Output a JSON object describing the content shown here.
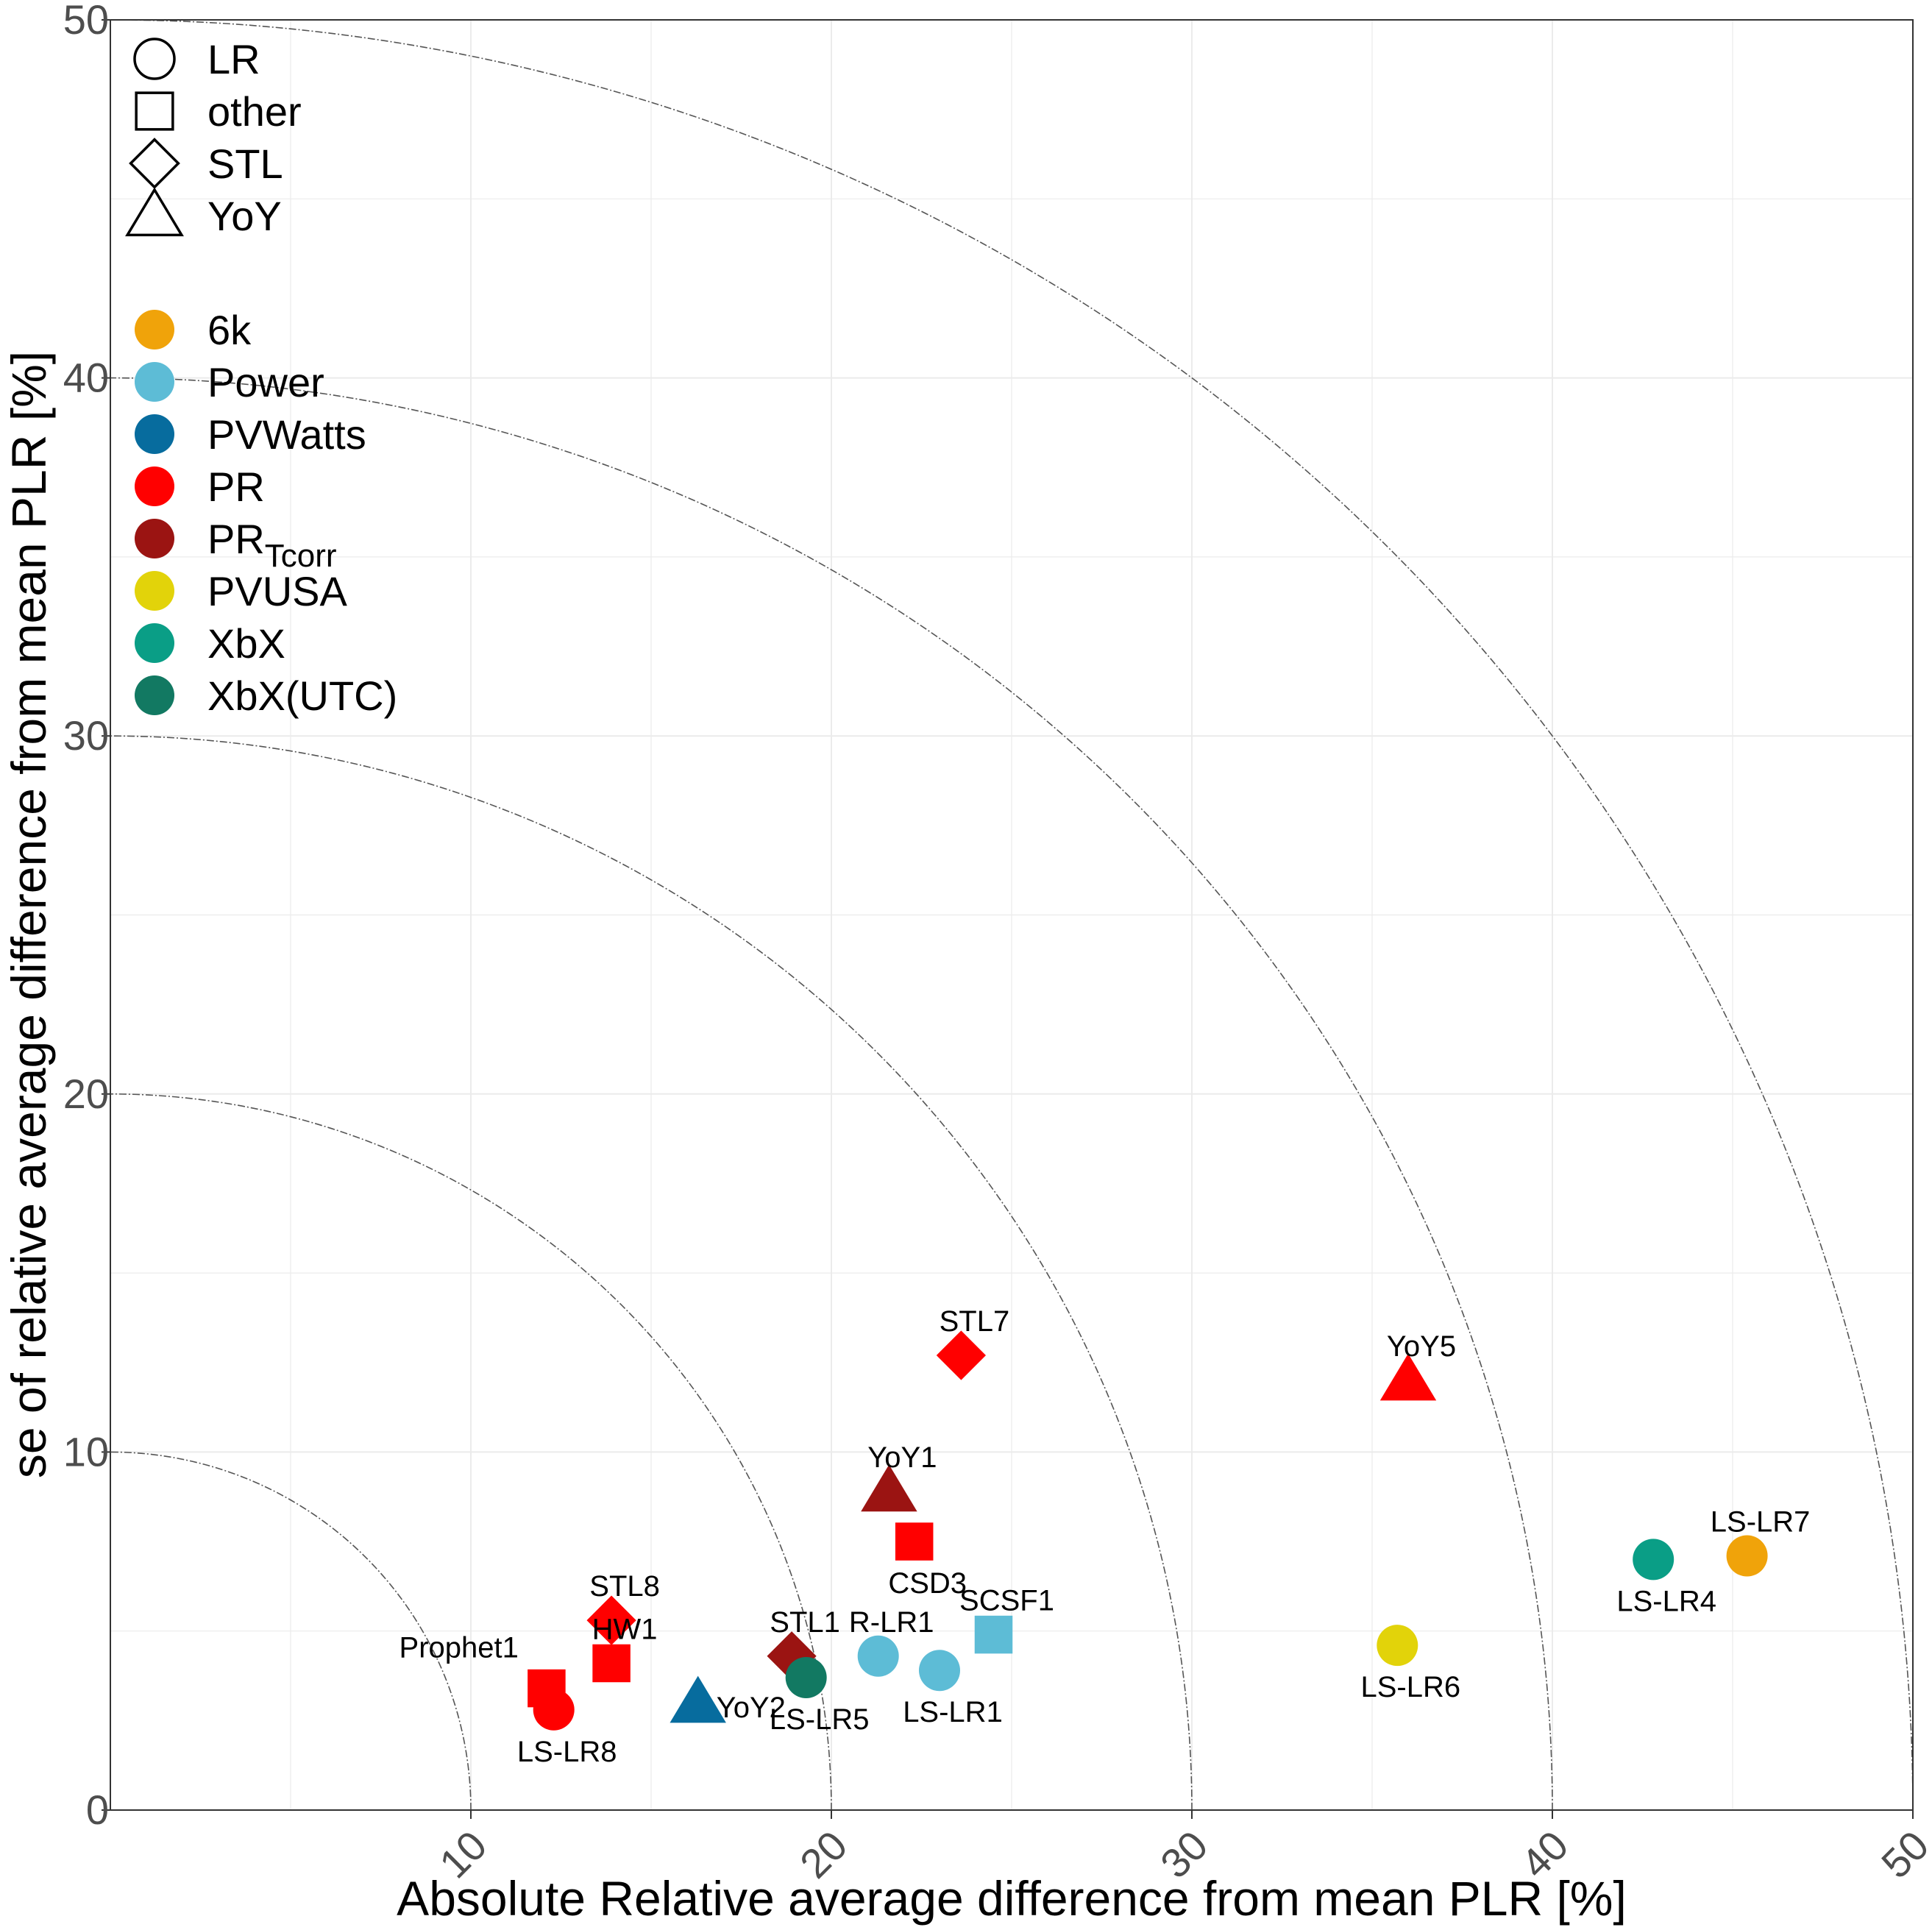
{
  "chart_data": {
    "type": "scatter",
    "xlabel": "Absolute Relative average difference from mean PLR [%]",
    "ylabel": "se of relative average difference from mean PLR [%]",
    "xlim": [
      0,
      50
    ],
    "ylim": [
      0,
      50
    ],
    "x_ticks": [
      "10",
      "20",
      "30",
      "40",
      "50"
    ],
    "y_ticks": [
      "0",
      "10",
      "20",
      "30",
      "40",
      "50"
    ],
    "grid": true,
    "reference_arcs": [
      10,
      20,
      30,
      40,
      50
    ],
    "legend": {
      "placement": "top-left",
      "shapes": [
        {
          "label": "LR",
          "shape": "circle"
        },
        {
          "label": "other",
          "shape": "square"
        },
        {
          "label": "STL",
          "shape": "diamond"
        },
        {
          "label": "YoY",
          "shape": "triangle"
        }
      ],
      "colors": [
        {
          "label": "6k",
          "color": "#F0A30A"
        },
        {
          "label": "Power",
          "color": "#5DBCD6"
        },
        {
          "label": "PVWatts",
          "color": "#076C9E"
        },
        {
          "label": "PR",
          "color": "#FF0000"
        },
        {
          "label": "PR",
          "sub": "Tcorr",
          "color": "#9B1412"
        },
        {
          "label": "PVUSA",
          "color": "#E2D30A"
        },
        {
          "label": "XbX",
          "color": "#0A9E86"
        },
        {
          "label": "XbX(UTC)",
          "color": "#127962"
        }
      ]
    },
    "points": [
      {
        "label": "LS-LR7",
        "x": 45.4,
        "y": 7.1,
        "shape": "circle",
        "color": "#F0A30A",
        "label_pos": "above"
      },
      {
        "label": "LS-LR4",
        "x": 42.8,
        "y": 7.0,
        "shape": "circle",
        "color": "#0A9E86",
        "label_pos": "below"
      },
      {
        "label": "LS-LR6",
        "x": 35.7,
        "y": 4.6,
        "shape": "circle",
        "color": "#E2D30A",
        "label_pos": "below"
      },
      {
        "label": "YoY5",
        "x": 36.0,
        "y": 12.0,
        "shape": "triangle",
        "color": "#FF0000",
        "label_pos": "above"
      },
      {
        "label": "STL7",
        "x": 23.6,
        "y": 12.7,
        "shape": "diamond",
        "color": "#FF0000",
        "label_pos": "above"
      },
      {
        "label": "YoY1",
        "x": 21.6,
        "y": 8.9,
        "shape": "triangle",
        "color": "#9B1412",
        "label_pos": "above"
      },
      {
        "label": "CSD3",
        "x": 22.3,
        "y": 7.5,
        "shape": "square",
        "color": "#FF0000",
        "label_pos": "below"
      },
      {
        "label": "SCSF1",
        "x": 24.5,
        "y": 4.9,
        "shape": "square",
        "color": "#5DBCD6",
        "label_pos": "above"
      },
      {
        "label": "LS-LR1",
        "x": 23.0,
        "y": 3.9,
        "shape": "circle",
        "color": "#5DBCD6",
        "label_pos": "below"
      },
      {
        "label": "R-LR1",
        "x": 21.3,
        "y": 4.3,
        "shape": "circle",
        "color": "#5DBCD6",
        "label_pos": "above"
      },
      {
        "label": "STL1",
        "x": 18.9,
        "y": 4.3,
        "shape": "diamond",
        "color": "#9B1412",
        "label_pos": "above"
      },
      {
        "label": "LS-LR5",
        "x": 19.3,
        "y": 3.7,
        "shape": "circle",
        "color": "#127962",
        "label_pos": "below"
      },
      {
        "label": "YoY2",
        "x": 16.3,
        "y": 3.0,
        "shape": "triangle",
        "color": "#076C9E",
        "label_pos": "right"
      },
      {
        "label": "STL8",
        "x": 13.9,
        "y": 5.3,
        "shape": "diamond",
        "color": "#FF0000",
        "label_pos": "above"
      },
      {
        "label": "HW1",
        "x": 13.9,
        "y": 4.1,
        "shape": "square",
        "color": "#FF0000",
        "label_pos": "above"
      },
      {
        "label": "Prophet1",
        "x": 12.1,
        "y": 3.4,
        "shape": "square",
        "color": "#FF0000",
        "label_pos": "above-left"
      },
      {
        "label": "LS-LR8",
        "x": 12.3,
        "y": 2.8,
        "shape": "circle",
        "color": "#FF0000",
        "label_pos": "below"
      }
    ]
  }
}
